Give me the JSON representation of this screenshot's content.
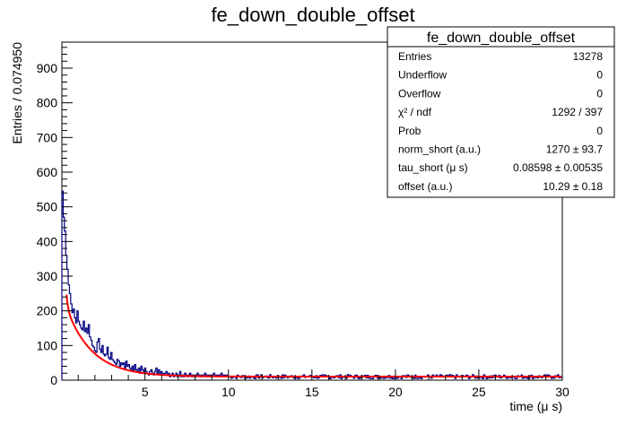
{
  "chart_data": {
    "type": "histogram",
    "title": "fe_down_double_offset",
    "xlabel": "time (μ s)",
    "ylabel": "Entries / 0.074950",
    "xlim": [
      0.02,
      30
    ],
    "ylim": [
      0,
      975
    ],
    "x_ticks": [
      5,
      10,
      15,
      20,
      25,
      30
    ],
    "y_ticks": [
      0,
      100,
      200,
      300,
      400,
      500,
      600,
      700,
      800,
      900
    ],
    "series": [
      {
        "kind": "histogram",
        "color": "#000080",
        "bins": [
          [
            0.02,
            545
          ],
          [
            0.1,
            470
          ],
          [
            0.17,
            430
          ],
          [
            0.25,
            360
          ],
          [
            0.32,
            320
          ],
          [
            0.4,
            275
          ],
          [
            0.47,
            250
          ],
          [
            0.55,
            220
          ],
          [
            0.62,
            195
          ],
          [
            0.7,
            205
          ],
          [
            0.77,
            180
          ],
          [
            0.85,
            165
          ],
          [
            0.92,
            200
          ],
          [
            1.0,
            170
          ],
          [
            1.07,
            160
          ],
          [
            1.15,
            150
          ],
          [
            1.22,
            145
          ],
          [
            1.3,
            170
          ],
          [
            1.37,
            140
          ],
          [
            1.45,
            150
          ],
          [
            1.52,
            135
          ],
          [
            1.6,
            160
          ],
          [
            1.67,
            125
          ],
          [
            1.75,
            115
          ],
          [
            1.82,
            100
          ],
          [
            1.9,
            95
          ],
          [
            1.97,
            85
          ],
          [
            2.05,
            80
          ],
          [
            2.12,
            110
          ],
          [
            2.2,
            120
          ],
          [
            2.27,
            90
          ],
          [
            2.35,
            80
          ],
          [
            2.42,
            100
          ],
          [
            2.5,
            75
          ],
          [
            2.57,
            70
          ],
          [
            2.65,
            75
          ],
          [
            2.72,
            95
          ],
          [
            2.8,
            65
          ],
          [
            2.87,
            60
          ],
          [
            2.95,
            80
          ],
          [
            3.02,
            60
          ],
          [
            3.1,
            55
          ],
          [
            3.17,
            50
          ],
          [
            3.25,
            45
          ],
          [
            3.32,
            60
          ],
          [
            3.4,
            55
          ],
          [
            3.47,
            40
          ],
          [
            3.55,
            50
          ],
          [
            3.62,
            45
          ],
          [
            3.7,
            50
          ],
          [
            3.77,
            35
          ],
          [
            3.85,
            55
          ],
          [
            3.92,
            40
          ],
          [
            4.0,
            45
          ],
          [
            4.07,
            35
          ],
          [
            4.15,
            30
          ],
          [
            4.22,
            40
          ],
          [
            4.3,
            25
          ],
          [
            4.37,
            45
          ],
          [
            4.45,
            30
          ],
          [
            4.52,
            25
          ],
          [
            4.6,
            35
          ],
          [
            4.67,
            20
          ],
          [
            4.75,
            40
          ],
          [
            4.82,
            30
          ],
          [
            4.9,
            25
          ],
          [
            4.97,
            35
          ],
          [
            5.05,
            25
          ],
          [
            5.12,
            20
          ],
          [
            5.2,
            15
          ],
          [
            5.27,
            25
          ],
          [
            5.35,
            30
          ],
          [
            5.42,
            20
          ],
          [
            5.5,
            15
          ],
          [
            5.57,
            25
          ],
          [
            5.65,
            35
          ],
          [
            5.72,
            20
          ],
          [
            5.8,
            30
          ],
          [
            5.87,
            15
          ],
          [
            5.95,
            25
          ],
          [
            6.02,
            20
          ],
          [
            6.1,
            15
          ],
          [
            6.17,
            20
          ],
          [
            6.25,
            25
          ],
          [
            6.32,
            15
          ],
          [
            6.4,
            20
          ],
          [
            6.47,
            10
          ],
          [
            6.55,
            15
          ],
          [
            6.62,
            20
          ],
          [
            6.7,
            10
          ],
          [
            6.77,
            15
          ],
          [
            6.85,
            20
          ],
          [
            6.92,
            10
          ],
          [
            7.0,
            15
          ],
          [
            7.07,
            25
          ],
          [
            7.15,
            10
          ],
          [
            7.22,
            15
          ],
          [
            7.3,
            10
          ],
          [
            7.37,
            20
          ],
          [
            7.45,
            15
          ],
          [
            7.52,
            10
          ],
          [
            7.6,
            15
          ],
          [
            7.67,
            20
          ],
          [
            7.75,
            10
          ],
          [
            7.82,
            15
          ],
          [
            7.9,
            10
          ],
          [
            7.97,
            15
          ],
          [
            8.05,
            10
          ],
          [
            8.12,
            20
          ],
          [
            8.2,
            15
          ],
          [
            8.27,
            10
          ],
          [
            8.35,
            15
          ],
          [
            8.42,
            10
          ],
          [
            8.5,
            15
          ],
          [
            8.57,
            20
          ],
          [
            8.65,
            10
          ],
          [
            8.72,
            15
          ],
          [
            8.8,
            10
          ],
          [
            8.87,
            15
          ],
          [
            8.95,
            10
          ],
          [
            9.02,
            15
          ],
          [
            9.1,
            20
          ],
          [
            9.17,
            10
          ],
          [
            9.25,
            15
          ],
          [
            9.32,
            10
          ],
          [
            9.4,
            15
          ],
          [
            9.47,
            10
          ],
          [
            9.55,
            20
          ],
          [
            9.62,
            10
          ],
          [
            9.7,
            15
          ],
          [
            9.77,
            10
          ],
          [
            9.85,
            15
          ],
          [
            9.92,
            10
          ]
        ]
      },
      {
        "kind": "fit-curve",
        "color": "#ff0000",
        "function": "norm_short*exp(-t/tau_short)+norm_long*exp(-t/tau_long)+offset"
      }
    ]
  },
  "stats_box": {
    "title": "fe_down_double_offset",
    "rows": [
      {
        "label": "Entries",
        "value": "13278"
      },
      {
        "label": "Underflow",
        "value": "0"
      },
      {
        "label": "Overflow",
        "value": "0"
      },
      {
        "label": "χ² / ndf",
        "value": "1292 / 397"
      },
      {
        "label": "Prob",
        "value": "0"
      },
      {
        "label": "norm_short (a.u.)",
        "value": "1270 ± 93.7"
      },
      {
        "label": "tau_short (μ s)",
        "value": "0.08598 ± 0.00535"
      },
      {
        "label": "offset (a.u.)",
        "value": "10.29 ± 0.18"
      }
    ]
  }
}
